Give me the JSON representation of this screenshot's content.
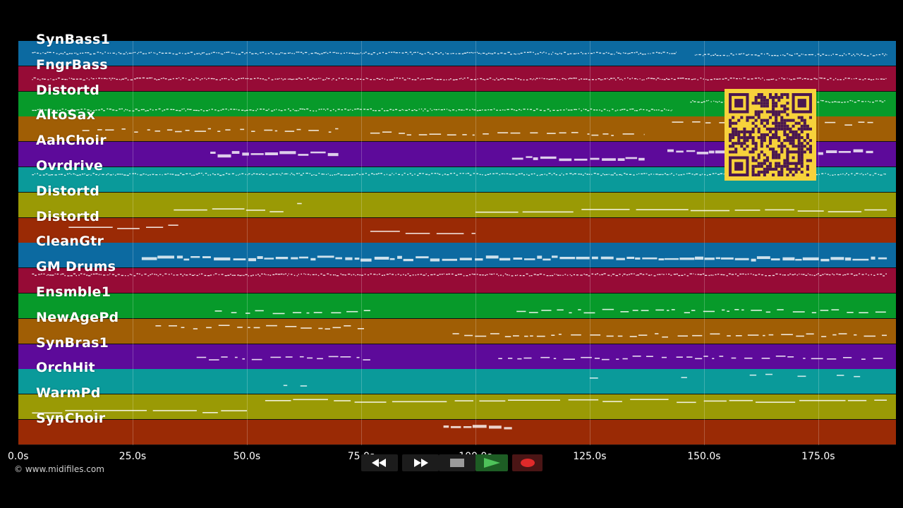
{
  "tracks": [
    {
      "name": "SynBass1",
      "color": "#0c6aa1"
    },
    {
      "name": "FngrBass",
      "color": "#960b36"
    },
    {
      "name": "Distortd",
      "color": "#079a2a"
    },
    {
      "name": "AltoSax",
      "color": "#a05e05"
    },
    {
      "name": "AahChoir",
      "color": "#5d0a9a"
    },
    {
      "name": "Ovrdrive",
      "color": "#0a9a9a"
    },
    {
      "name": "Distortd",
      "color": "#9a9a05"
    },
    {
      "name": "Distortd",
      "color": "#9a2a05"
    },
    {
      "name": "CleanGtr",
      "color": "#0c6aa1"
    },
    {
      "name": "GM Drums",
      "color": "#960b36"
    },
    {
      "name": "Ensmble1",
      "color": "#079a2a"
    },
    {
      "name": "NewAgePd",
      "color": "#a05e05"
    },
    {
      "name": "SynBras1",
      "color": "#5d0a9a"
    },
    {
      "name": "OrchHit",
      "color": "#0a9a9a"
    },
    {
      "name": "WarmPd",
      "color": "#9a9a05"
    },
    {
      "name": "SynChoir",
      "color": "#9a2a05"
    }
  ],
  "timeline": {
    "duration_s": 192,
    "ticks": [
      {
        "t": 0,
        "label": "0.0s"
      },
      {
        "t": 25,
        "label": "25.0s"
      },
      {
        "t": 50,
        "label": "50.0s"
      },
      {
        "t": 75,
        "label": "75.0s"
      },
      {
        "t": 100,
        "label": "100.0s"
      },
      {
        "t": 125,
        "label": "125.0s"
      },
      {
        "t": 150,
        "label": "150.0s"
      },
      {
        "t": 175,
        "label": "175.0s"
      }
    ]
  },
  "note_segments": [
    {
      "track": 0,
      "kind": "dense",
      "ranges": [
        [
          3,
          144
        ],
        [
          148,
          190
        ]
      ]
    },
    {
      "track": 1,
      "kind": "dense",
      "ranges": [
        [
          3,
          190
        ]
      ]
    },
    {
      "track": 2,
      "kind": "dense",
      "ranges": [
        [
          3,
          143
        ],
        [
          147,
          190
        ]
      ]
    },
    {
      "track": 3,
      "kind": "phrase",
      "ranges": [
        [
          14,
          70
        ],
        [
          77,
          137
        ],
        [
          143,
          187
        ]
      ]
    },
    {
      "track": 4,
      "kind": "block",
      "ranges": [
        [
          42,
          70
        ],
        [
          108,
          137
        ],
        [
          142,
          187
        ]
      ]
    },
    {
      "track": 5,
      "kind": "dense",
      "ranges": [
        [
          3,
          190
        ]
      ]
    },
    {
      "track": 6,
      "kind": "long",
      "ranges": [
        [
          34,
          58
        ],
        [
          61,
          62
        ],
        [
          100,
          190
        ]
      ]
    },
    {
      "track": 7,
      "kind": "long",
      "ranges": [
        [
          11,
          35
        ],
        [
          77,
          100
        ]
      ]
    },
    {
      "track": 8,
      "kind": "block",
      "ranges": [
        [
          27,
          190
        ]
      ]
    },
    {
      "track": 9,
      "kind": "dense",
      "ranges": [
        [
          3,
          190
        ]
      ]
    },
    {
      "track": 10,
      "kind": "phrase",
      "ranges": [
        [
          43,
          77
        ],
        [
          109,
          190
        ]
      ]
    },
    {
      "track": 11,
      "kind": "phrase",
      "ranges": [
        [
          30,
          77
        ],
        [
          95,
          190
        ]
      ]
    },
    {
      "track": 12,
      "kind": "phrase",
      "ranges": [
        [
          39,
          77
        ],
        [
          105,
          190
        ]
      ]
    },
    {
      "track": 13,
      "kind": "sparse",
      "ranges": [
        [
          58,
          68
        ],
        [
          125,
          130
        ],
        [
          145,
          148
        ],
        [
          160,
          190
        ]
      ]
    },
    {
      "track": 14,
      "kind": "long",
      "ranges": [
        [
          3,
          50
        ],
        [
          54,
          190
        ]
      ]
    },
    {
      "track": 15,
      "kind": "block",
      "ranges": [
        [
          93,
          108
        ]
      ]
    }
  ],
  "transport": {
    "buttons": [
      {
        "id": "rewind",
        "icon": "rewind-icon"
      },
      {
        "id": "fast-forward",
        "icon": "fast-forward-icon"
      },
      {
        "id": "stop",
        "icon": "stop-icon"
      },
      {
        "id": "play",
        "icon": "play-icon"
      },
      {
        "id": "record",
        "icon": "record-icon"
      }
    ],
    "colors": {
      "button_bg": "#1c1c1c",
      "play_bg": "#1d5d24",
      "play_fg": "#4ec25a",
      "record_bg": "#4a1515",
      "record_fg": "#e02a2a",
      "stop_fg": "#9a9a9a"
    }
  },
  "qr_code": {
    "background": "#f7d23b",
    "foreground": "#4a1750"
  },
  "copyright": "© www.midifiles.com"
}
